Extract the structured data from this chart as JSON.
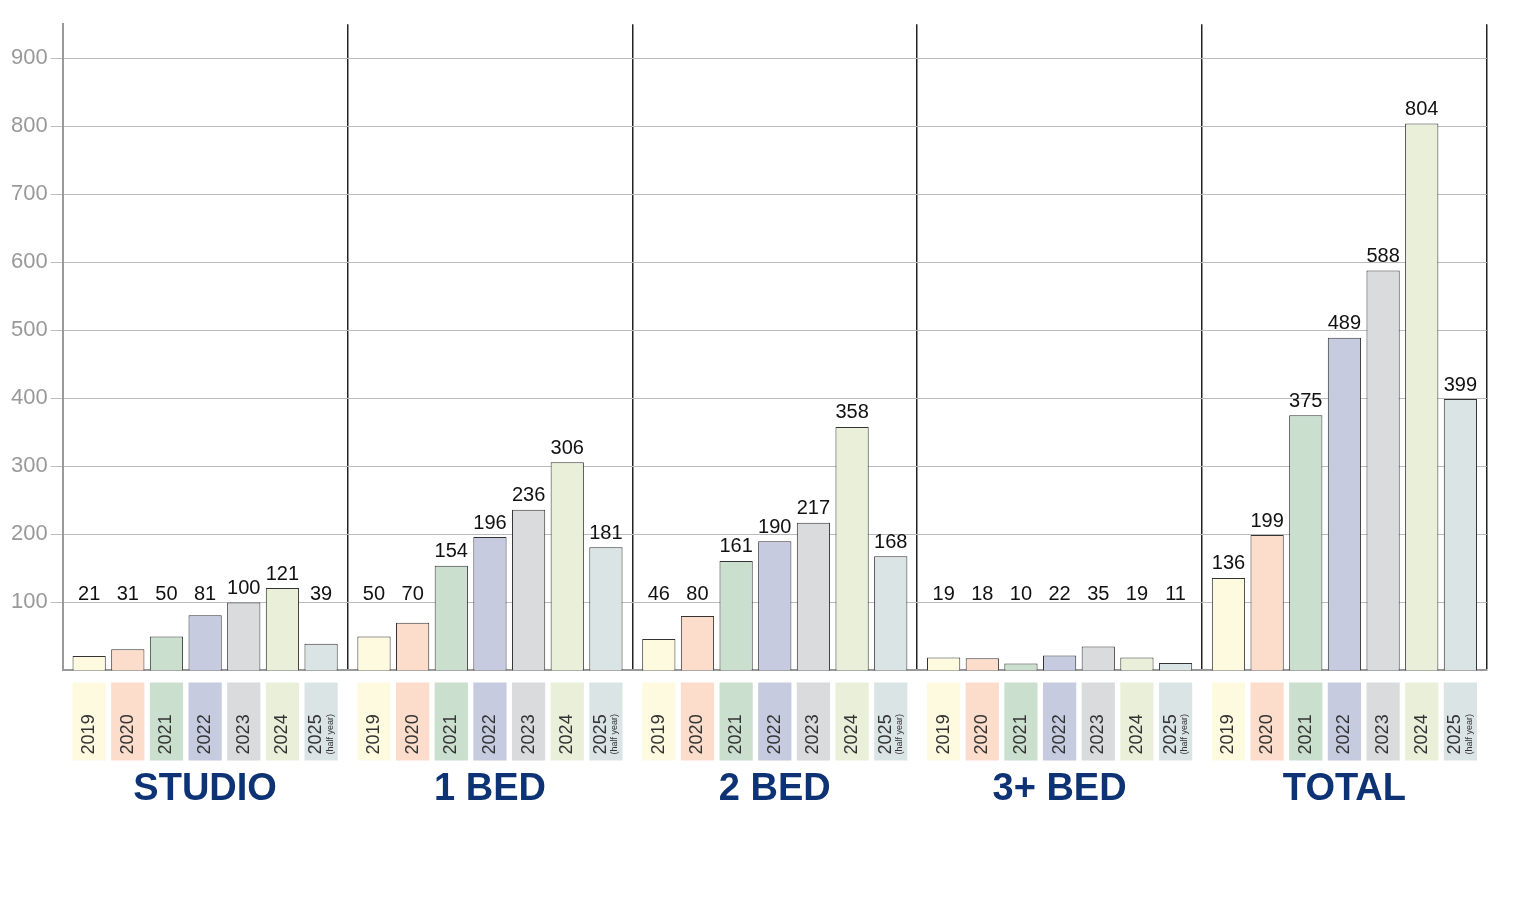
{
  "chart_data": {
    "type": "bar",
    "categories": [
      "STUDIO",
      "1 BED",
      "2 BED",
      "3+ BED",
      "TOTAL"
    ],
    "series": [
      {
        "name": "2019",
        "color": "#fefae0",
        "values": [
          21,
          50,
          46,
          19,
          136
        ]
      },
      {
        "name": "2020",
        "color": "#fcdccb",
        "values": [
          31,
          70,
          80,
          18,
          199
        ]
      },
      {
        "name": "2021",
        "color": "#cbdfcf",
        "values": [
          50,
          154,
          161,
          10,
          375
        ]
      },
      {
        "name": "2022",
        "color": "#c6cbe0",
        "values": [
          81,
          196,
          190,
          22,
          489
        ]
      },
      {
        "name": "2023",
        "color": "#dadbdd",
        "values": [
          100,
          236,
          217,
          35,
          588
        ]
      },
      {
        "name": "2024",
        "color": "#e9efd9",
        "values": [
          121,
          306,
          358,
          19,
          804
        ]
      },
      {
        "name": "2025 (half year)",
        "color": "#dbe4e5",
        "values": [
          39,
          181,
          168,
          11,
          399
        ]
      }
    ],
    "ylim": [
      0,
      950
    ],
    "yticks": [
      100,
      200,
      300,
      400,
      500,
      600,
      700,
      800,
      900
    ],
    "grid": true,
    "data_labels": true,
    "legend": "bottom"
  }
}
